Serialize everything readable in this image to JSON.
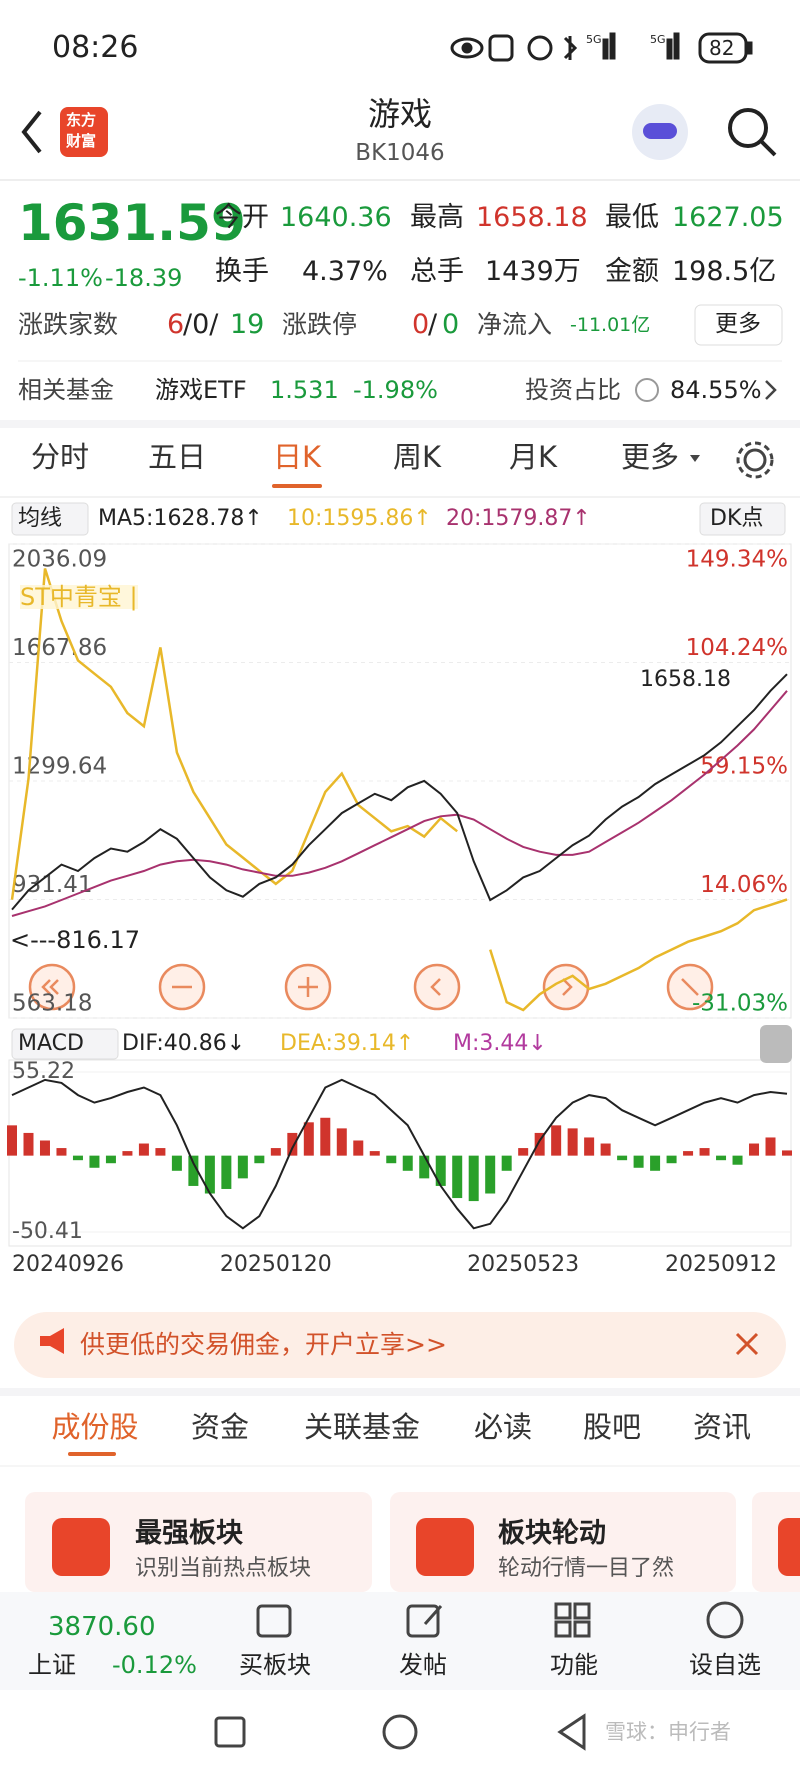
{
  "status": {
    "time": "08:26",
    "network": "5G",
    "battery": "82"
  },
  "header": {
    "logo": [
      "东方",
      "财富"
    ],
    "title": "游戏",
    "code": "BK1046"
  },
  "quote": {
    "price": "1631.59",
    "change_pct": "-1.11%",
    "change": "-18.39",
    "stats": [
      {
        "label": "今开",
        "value": "1640.36"
      },
      {
        "label": "最高",
        "value": "1658.18"
      },
      {
        "label": "最低",
        "value": "1627.05"
      },
      {
        "label": "换手",
        "value": "4.37%"
      },
      {
        "label": "总手",
        "value": "1439万"
      },
      {
        "label": "金额",
        "value": "198.5亿"
      }
    ],
    "breadth": {
      "label": "涨跌家数",
      "up": "6",
      "flat": "/0/",
      "down": "19"
    },
    "limit": {
      "label": "涨跌停",
      "up": "0",
      "sep": "/",
      "down": "0"
    },
    "net_inflow": {
      "label": "净流入",
      "value": "-11.01亿"
    },
    "more": "更多"
  },
  "fund": {
    "label": "相关基金",
    "name": "游戏ETF",
    "price": "1.531",
    "change": "-1.98%",
    "share_label": "投资占比",
    "share": "84.55%"
  },
  "tabs": {
    "items": [
      "分时",
      "五日",
      "日K",
      "周K",
      "月K",
      "更多"
    ],
    "active": 2
  },
  "ma_bar": {
    "selector": "均线",
    "ma5": "MA5:1628.78↑",
    "ma10": "10:1595.86↑",
    "ma20": "20:1579.87↑",
    "dk": "DK点"
  },
  "kline": {
    "ylim": [
      563.18,
      2036.09
    ],
    "yticks": [
      2036.09,
      1667.86,
      1299.64,
      931.41,
      563.18
    ],
    "y2lim": [
      -31.03,
      149.34
    ],
    "y2ticks": [
      {
        "value": 149.34,
        "label": "149.34%"
      },
      {
        "value": 104.24,
        "label": "104.24%"
      },
      {
        "value": 59.15,
        "label": "59.15%"
      },
      {
        "value": 14.06,
        "label": "14.06%"
      },
      {
        "value": -31.03,
        "label": "-31.03%"
      }
    ],
    "high_label": "1658.18",
    "low_label": "<---816.17",
    "dates": [
      "20240926",
      null,
      null,
      null,
      null,
      null,
      null,
      null,
      null,
      null,
      null,
      null,
      null,
      null,
      null,
      null,
      "20250120",
      null,
      null,
      null,
      null,
      null,
      null,
      null,
      null,
      null,
      null,
      null,
      null,
      null,
      null,
      "20250523",
      null,
      null,
      null,
      null,
      null,
      null,
      null,
      null,
      null,
      null,
      null,
      "20250912",
      null,
      null,
      null,
      null
    ],
    "close": {
      "color": "#222222",
      "values": [
        900,
        960,
        1000,
        1040,
        1020,
        1060,
        1090,
        1080,
        1110,
        1150,
        1120,
        1060,
        1000,
        960,
        940,
        980,
        1000,
        1040,
        1100,
        1150,
        1200,
        1230,
        1260,
        1240,
        1280,
        1300,
        1260,
        1200,
        1050,
        930,
        960,
        1000,
        1020,
        1060,
        1100,
        1130,
        1180,
        1220,
        1250,
        1290,
        1320,
        1350,
        1380,
        1420,
        1470,
        1520,
        1580,
        1631.59
      ]
    },
    "ma20": {
      "color": "#a8326e",
      "values": [
        880,
        895,
        910,
        930,
        950,
        970,
        990,
        1005,
        1020,
        1040,
        1050,
        1055,
        1050,
        1040,
        1025,
        1015,
        1005,
        1005,
        1015,
        1030,
        1050,
        1075,
        1100,
        1125,
        1150,
        1175,
        1190,
        1195,
        1180,
        1150,
        1120,
        1095,
        1080,
        1070,
        1070,
        1080,
        1110,
        1140,
        1170,
        1205,
        1240,
        1280,
        1320,
        1365,
        1410,
        1460,
        1520,
        1579.87
      ]
    },
    "compare": {
      "name": "ST中青宝 |",
      "color": "#e8b82a",
      "axis": "y2",
      "values": [
        14,
        60,
        140,
        120,
        105,
        100,
        95,
        85,
        80,
        110,
        70,
        55,
        45,
        35,
        30,
        25,
        20,
        25,
        40,
        55,
        62,
        50,
        45,
        40,
        42,
        38,
        45,
        40,
        null,
        -5,
        -25,
        -28,
        -22,
        -18,
        -15,
        -20,
        -18,
        -15,
        -12,
        -8,
        -5,
        -2,
        0,
        2,
        5,
        10,
        12,
        14.06
      ]
    }
  },
  "macd": {
    "selector": "MACD",
    "dif_label": "DIF:40.86↓",
    "dea_label": "DEA:39.14↑",
    "m_label": "M:3.44↓",
    "ylim": [
      -50.41,
      55.22
    ],
    "yticks": [
      55.22,
      -50.41
    ],
    "hist": [
      20,
      15,
      10,
      5,
      -3,
      -8,
      -5,
      3,
      8,
      5,
      -10,
      -20,
      -25,
      -22,
      -15,
      -5,
      5,
      15,
      22,
      25,
      18,
      10,
      3,
      -5,
      -10,
      -15,
      -20,
      -28,
      -30,
      -25,
      -10,
      5,
      15,
      20,
      18,
      12,
      8,
      -3,
      -8,
      -10,
      -5,
      3,
      5,
      -3,
      -6,
      8,
      12,
      3.44
    ],
    "dif": [
      40,
      45,
      50,
      48,
      40,
      35,
      38,
      42,
      45,
      40,
      20,
      -5,
      -25,
      -40,
      -48,
      -40,
      -20,
      5,
      25,
      45,
      50,
      45,
      40,
      30,
      20,
      0,
      -20,
      -35,
      -48,
      -45,
      -30,
      -10,
      10,
      25,
      35,
      40,
      38,
      30,
      25,
      20,
      25,
      30,
      35,
      38,
      35,
      40,
      42,
      40.86
    ]
  },
  "banner": {
    "text": "供更低的交易佣金，开户立享>>"
  },
  "sections": [
    "成份股",
    "资金",
    "关联基金",
    "必读",
    "股吧",
    "资讯"
  ],
  "cards": [
    {
      "title": "最强板块",
      "subtitle": "识别当前热点板块"
    },
    {
      "title": "板块轮动",
      "subtitle": "轮动行情一目了然"
    }
  ],
  "bottom": {
    "index_value": "3870.60",
    "index_name": "上证",
    "index_change": "-0.12%",
    "actions": [
      "买板块",
      "发帖",
      "功能",
      "设自选"
    ]
  },
  "watermark": "雪球：申行者"
}
